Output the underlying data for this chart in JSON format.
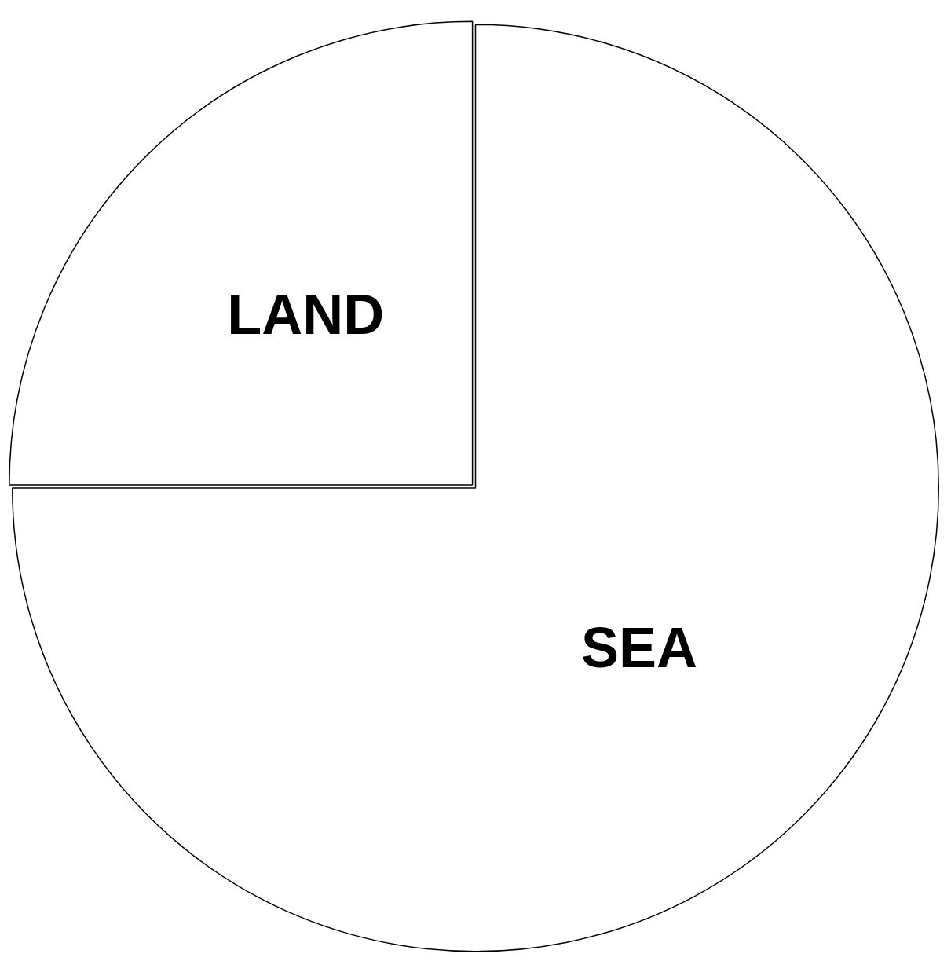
{
  "chart_data": {
    "type": "pie",
    "categories": [
      "LAND",
      "SEA"
    ],
    "values": [
      25,
      75
    ],
    "colors": [
      "#ffffff",
      "#ffffff"
    ],
    "legend": false,
    "data_labels": false
  }
}
